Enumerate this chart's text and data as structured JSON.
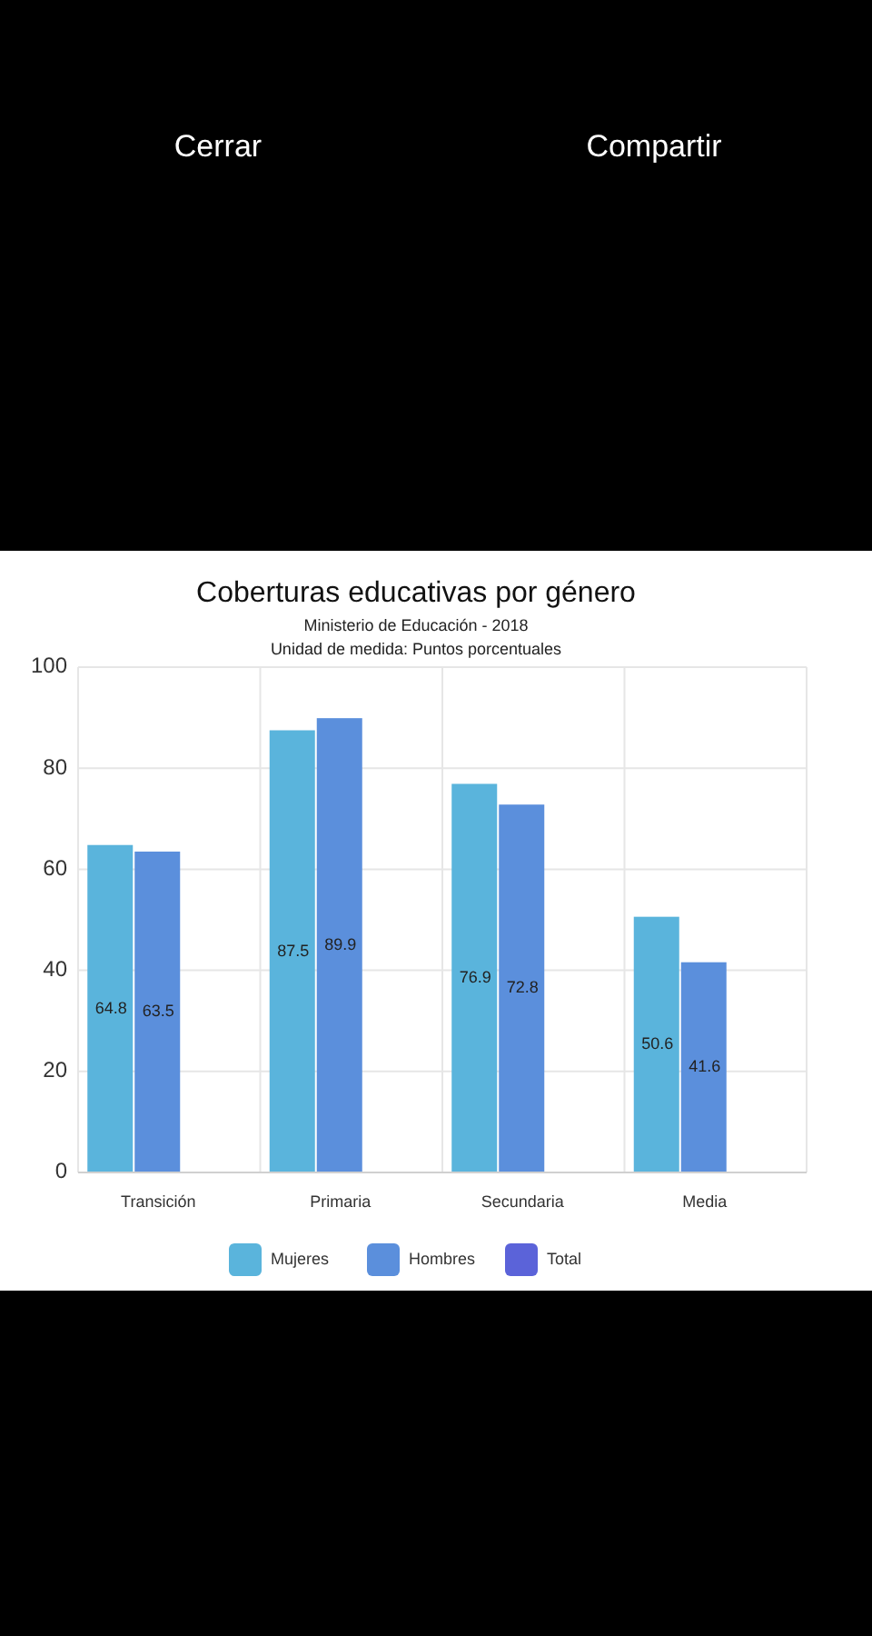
{
  "chart_data": {
    "type": "bar",
    "title": "Coberturas educativas por género",
    "subtitle": "Ministerio de Educación - 2018\nUnidad de medida: Puntos porcentuales",
    "annotations": [
      "Cerrar",
      "Compartir"
    ],
    "categories": [
      "Transición",
      "Primaria",
      "Secundaria",
      "Media"
    ],
    "series": [
      {
        "name": "Mujeres",
        "color": "#5ab4dc",
        "values": [
          64.8,
          87.5,
          76.9,
          50.6
        ]
      },
      {
        "name": "Hombres",
        "color": "#5b8fdc",
        "values": [
          63.5,
          89.9,
          72.8,
          41.6
        ]
      },
      {
        "name": "Total",
        "color": "#5b63d9",
        "values": [
          null,
          null,
          null,
          null
        ]
      }
    ],
    "ylim": [
      0,
      100
    ],
    "yticks": [
      0,
      20,
      40,
      60,
      80,
      100
    ],
    "grid": true,
    "legend": "bottom",
    "data_labels": true
  }
}
